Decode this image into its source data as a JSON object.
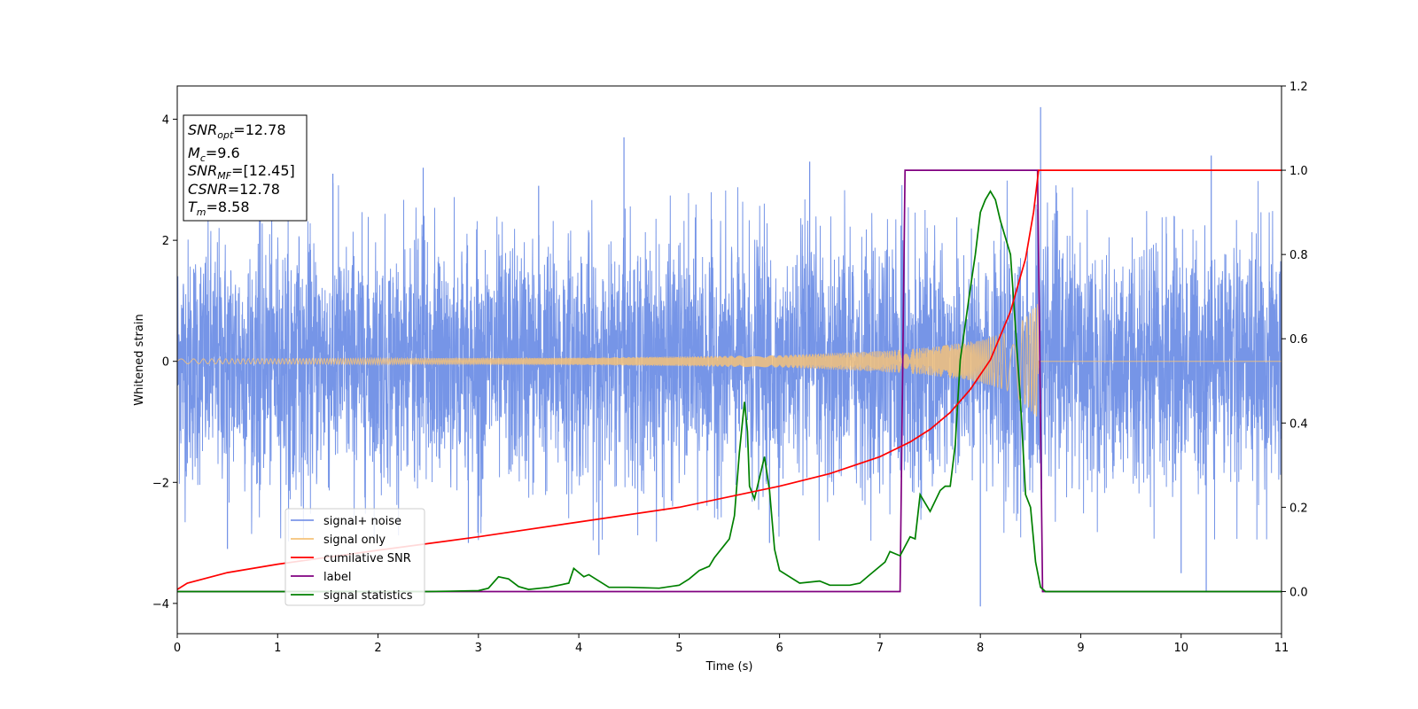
{
  "chart_data": {
    "type": "line",
    "xlabel": "Time (s)",
    "ylabel": "Whitened strain",
    "xlim": [
      0,
      11
    ],
    "ylim": [
      -4.5,
      4.55
    ],
    "y2lim": [
      -0.1,
      1.2
    ],
    "xticks": [
      0,
      1,
      2,
      3,
      4,
      5,
      6,
      7,
      8,
      9,
      10,
      11
    ],
    "yticks": [
      -4,
      -2,
      0,
      2,
      4
    ],
    "y2ticks": [
      "0.0",
      "0.2",
      "0.4",
      "0.6",
      "0.8",
      "1.0",
      "1.2"
    ],
    "info_box": {
      "snr_opt": {
        "base": "SNR",
        "sub": "opt",
        "value": "=12.78"
      },
      "mc": {
        "base": "M",
        "sub": "c",
        "value": "=9.6"
      },
      "snr_mf": {
        "base": "SNR",
        "sub": "MF",
        "value": "=[12.45]"
      },
      "csnr": {
        "base": "CSNR",
        "value": "=12.78"
      },
      "tm": {
        "base": "T",
        "sub": "m",
        "value": "=8.58"
      }
    },
    "legend": {
      "placement": "lower-left",
      "entries": [
        {
          "label": "signal+ noise",
          "color": "#7b96e8"
        },
        {
          "label": "signal only",
          "color": "#f5c27a"
        },
        {
          "label": "cumilative SNR",
          "color": "#ff0000"
        },
        {
          "label": "label",
          "color": "#800080"
        },
        {
          "label": "signal statistics",
          "color": "#008000"
        }
      ]
    },
    "series": [
      {
        "name": "signal+ noise",
        "axis": "left",
        "color": "#6f8fe6",
        "noise_sigma": 1.0,
        "spikes": [
          {
            "x": 0.5,
            "y": -3.1
          },
          {
            "x": 0.82,
            "y": 2.9
          },
          {
            "x": 1.55,
            "y": 3.1
          },
          {
            "x": 2.45,
            "y": 3.2
          },
          {
            "x": 3.6,
            "y": 2.9
          },
          {
            "x": 4.45,
            "y": 3.7
          },
          {
            "x": 4.2,
            "y": -3.2
          },
          {
            "x": 6.3,
            "y": 3.3
          },
          {
            "x": 8.0,
            "y": -4.05
          },
          {
            "x": 8.6,
            "y": 4.2
          },
          {
            "x": 10.3,
            "y": 3.4
          },
          {
            "x": 10.25,
            "y": -3.8
          },
          {
            "x": 10.0,
            "y": -3.5
          },
          {
            "x": 2.9,
            "y": -3.0
          },
          {
            "x": 5.9,
            "y": -3.0
          }
        ]
      },
      {
        "name": "signal only",
        "axis": "left",
        "color": "#f5c27a",
        "envelope": [
          [
            0,
            0.04
          ],
          [
            2,
            0.05
          ],
          [
            4,
            0.06
          ],
          [
            5,
            0.08
          ],
          [
            6,
            0.1
          ],
          [
            7,
            0.17
          ],
          [
            7.5,
            0.23
          ],
          [
            8,
            0.35
          ],
          [
            8.3,
            0.5
          ],
          [
            8.5,
            0.8
          ],
          [
            8.57,
            1.0
          ],
          [
            8.58,
            0.0
          ],
          [
            11,
            0.0
          ]
        ]
      },
      {
        "name": "cumilative SNR",
        "axis": "right",
        "color": "#ff0000",
        "points": [
          [
            0,
            0.005
          ],
          [
            0.1,
            0.02
          ],
          [
            0.5,
            0.045
          ],
          [
            1,
            0.065
          ],
          [
            2,
            0.098
          ],
          [
            3,
            0.13
          ],
          [
            4,
            0.165
          ],
          [
            5,
            0.2
          ],
          [
            6,
            0.25
          ],
          [
            6.5,
            0.28
          ],
          [
            7,
            0.32
          ],
          [
            7.3,
            0.355
          ],
          [
            7.5,
            0.385
          ],
          [
            7.7,
            0.425
          ],
          [
            7.9,
            0.48
          ],
          [
            8.1,
            0.55
          ],
          [
            8.3,
            0.665
          ],
          [
            8.45,
            0.79
          ],
          [
            8.53,
            0.9
          ],
          [
            8.58,
            1.0
          ],
          [
            11,
            1.0
          ]
        ]
      },
      {
        "name": "label",
        "axis": "right",
        "color": "#800080",
        "points": [
          [
            0,
            0.0
          ],
          [
            7.2,
            0.0
          ],
          [
            7.25,
            1.0
          ],
          [
            8.57,
            1.0
          ],
          [
            8.62,
            0.0
          ],
          [
            11,
            0.0
          ]
        ]
      },
      {
        "name": "signal statistics",
        "axis": "right",
        "color": "#008000",
        "points": [
          [
            0,
            0.0
          ],
          [
            2.5,
            0.0
          ],
          [
            3.0,
            0.002
          ],
          [
            3.1,
            0.008
          ],
          [
            3.2,
            0.035
          ],
          [
            3.3,
            0.03
          ],
          [
            3.4,
            0.012
          ],
          [
            3.5,
            0.005
          ],
          [
            3.7,
            0.01
          ],
          [
            3.9,
            0.02
          ],
          [
            3.95,
            0.055
          ],
          [
            4.05,
            0.035
          ],
          [
            4.1,
            0.04
          ],
          [
            4.3,
            0.01
          ],
          [
            4.5,
            0.01
          ],
          [
            4.8,
            0.008
          ],
          [
            5.0,
            0.015
          ],
          [
            5.1,
            0.03
          ],
          [
            5.2,
            0.05
          ],
          [
            5.3,
            0.06
          ],
          [
            5.35,
            0.08
          ],
          [
            5.45,
            0.11
          ],
          [
            5.5,
            0.125
          ],
          [
            5.55,
            0.18
          ],
          [
            5.6,
            0.33
          ],
          [
            5.65,
            0.45
          ],
          [
            5.68,
            0.38
          ],
          [
            5.7,
            0.25
          ],
          [
            5.75,
            0.22
          ],
          [
            5.8,
            0.27
          ],
          [
            5.85,
            0.32
          ],
          [
            5.9,
            0.24
          ],
          [
            5.95,
            0.1
          ],
          [
            6.0,
            0.05
          ],
          [
            6.2,
            0.02
          ],
          [
            6.4,
            0.025
          ],
          [
            6.5,
            0.015
          ],
          [
            6.7,
            0.015
          ],
          [
            6.8,
            0.02
          ],
          [
            6.9,
            0.04
          ],
          [
            7.05,
            0.07
          ],
          [
            7.1,
            0.095
          ],
          [
            7.2,
            0.085
          ],
          [
            7.3,
            0.13
          ],
          [
            7.35,
            0.125
          ],
          [
            7.4,
            0.23
          ],
          [
            7.5,
            0.19
          ],
          [
            7.6,
            0.24
          ],
          [
            7.65,
            0.25
          ],
          [
            7.7,
            0.25
          ],
          [
            7.75,
            0.35
          ],
          [
            7.8,
            0.55
          ],
          [
            7.9,
            0.72
          ],
          [
            7.95,
            0.8
          ],
          [
            8.0,
            0.9
          ],
          [
            8.05,
            0.93
          ],
          [
            8.1,
            0.95
          ],
          [
            8.15,
            0.93
          ],
          [
            8.2,
            0.88
          ],
          [
            8.3,
            0.8
          ],
          [
            8.4,
            0.45
          ],
          [
            8.45,
            0.23
          ],
          [
            8.5,
            0.2
          ],
          [
            8.55,
            0.07
          ],
          [
            8.6,
            0.01
          ],
          [
            8.65,
            0.0
          ],
          [
            11,
            0.0
          ]
        ]
      }
    ]
  }
}
